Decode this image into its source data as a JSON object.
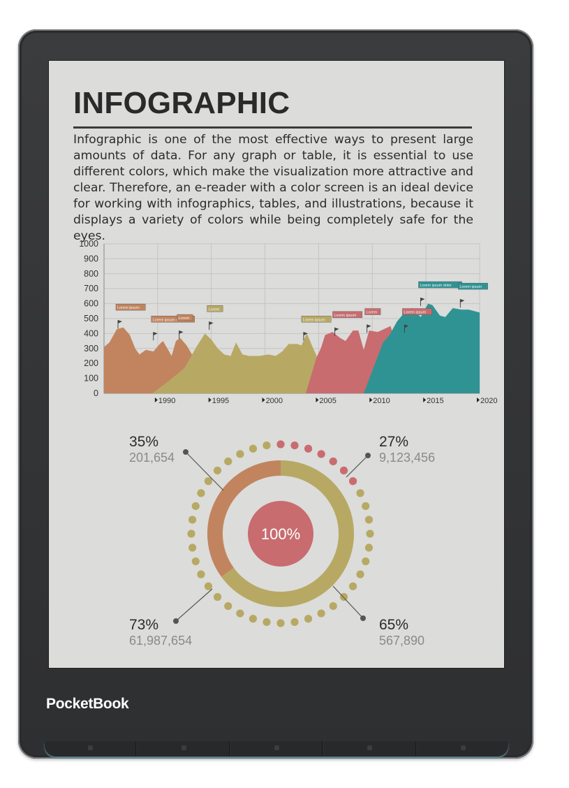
{
  "device": {
    "brand_logo": "PocketBook"
  },
  "page": {
    "title": "INFOGRAPHIC",
    "body": "Infographic is one of the most effective ways to present large amounts of data. For any graph or table, it is essential to use different colors, which make the visualization more attractive and clear. Therefore, an e-reader with a color screen is an ideal device for working with infographics, tables, and illustrations, because it displays a variety of colors while being completely safe for the eyes."
  },
  "colors": {
    "orange": "#c1845f",
    "olive": "#b7a964",
    "red": "#c86c6f",
    "teal": "#2f9394",
    "screen_bg": "#dcdcda",
    "text": "#2c2c2c"
  },
  "chart_data": [
    {
      "type": "area",
      "x_labels": [
        "1990",
        "1995",
        "2000",
        "2005",
        "2010",
        "2015",
        "2020"
      ],
      "xlim": [
        1985,
        2020
      ],
      "ylim": [
        0,
        1000
      ],
      "y_ticks": [
        "1000",
        "900",
        "800",
        "700",
        "600",
        "500",
        "400",
        "300",
        "200",
        "100",
        "0"
      ],
      "grid": true,
      "series": [
        {
          "color": "#c1845f",
          "points": [
            [
              1985,
              310
            ],
            [
              1985.5,
              340
            ],
            [
              1986.2,
              430
            ],
            [
              1986.8,
              440
            ],
            [
              1987.4,
              390
            ],
            [
              1987.9,
              300
            ],
            [
              1988.3,
              260
            ],
            [
              1988.9,
              290
            ],
            [
              1989.6,
              280
            ],
            [
              1990.2,
              330
            ],
            [
              1990.5,
              350
            ],
            [
              1990.9,
              300
            ],
            [
              1991.3,
              250
            ],
            [
              1991.7,
              350
            ],
            [
              1992.1,
              370
            ],
            [
              1992.7,
              320
            ],
            [
              1993.2,
              260
            ],
            [
              1993.6,
              220
            ],
            [
              1993.9,
              0
            ]
          ]
        },
        {
          "color": "#b7a964",
          "points": [
            [
              1989.5,
              0
            ],
            [
              1991.0,
              80
            ],
            [
              1992.5,
              170
            ],
            [
              1993.6,
              310
            ],
            [
              1994.4,
              400
            ],
            [
              1995.0,
              360
            ],
            [
              1995.6,
              300
            ],
            [
              1996.2,
              260
            ],
            [
              1996.8,
              250
            ],
            [
              1997.3,
              340
            ],
            [
              1997.9,
              260
            ],
            [
              1998.5,
              250
            ],
            [
              1999.5,
              250
            ],
            [
              2000.3,
              260
            ],
            [
              2001.0,
              250
            ],
            [
              2001.6,
              280
            ],
            [
              2002.2,
              330
            ],
            [
              2003.0,
              330
            ],
            [
              2003.4,
              320
            ],
            [
              2003.9,
              400
            ],
            [
              2004.5,
              300
            ],
            [
              2005.0,
              220
            ],
            [
              2005.5,
              0
            ]
          ]
        },
        {
          "color": "#c86c6f",
          "points": [
            [
              2003.8,
              0
            ],
            [
              2004.3,
              120
            ],
            [
              2004.8,
              240
            ],
            [
              2005.2,
              300
            ],
            [
              2005.6,
              390
            ],
            [
              2006.3,
              410
            ],
            [
              2007.0,
              370
            ],
            [
              2007.5,
              350
            ],
            [
              2008.2,
              420
            ],
            [
              2008.7,
              420
            ],
            [
              2009.2,
              290
            ],
            [
              2009.7,
              420
            ],
            [
              2010.5,
              410
            ],
            [
              2011.1,
              430
            ],
            [
              2011.7,
              450
            ],
            [
              2012.2,
              330
            ],
            [
              2012.5,
              0
            ]
          ]
        },
        {
          "color": "#2f9394",
          "points": [
            [
              2009.2,
              0
            ],
            [
              2010.1,
              170
            ],
            [
              2011.0,
              340
            ],
            [
              2011.6,
              390
            ],
            [
              2012.3,
              480
            ],
            [
              2013.0,
              540
            ],
            [
              2013.7,
              570
            ],
            [
              2014.5,
              510
            ],
            [
              2015.2,
              600
            ],
            [
              2015.6,
              590
            ],
            [
              2016.3,
              520
            ],
            [
              2016.8,
              510
            ],
            [
              2017.5,
              570
            ],
            [
              2018.3,
              560
            ],
            [
              2019.0,
              560
            ],
            [
              2020,
              540
            ],
            [
              2020,
              0
            ]
          ]
        }
      ],
      "flags": [
        {
          "x": 1986.3,
          "y": 490,
          "color": "#c1845f",
          "label": "Lorem ipsum"
        },
        {
          "x": 1989.6,
          "y": 410,
          "color": "#c1845f",
          "label": "Lorem ipsum dolor"
        },
        {
          "x": 1992.0,
          "y": 420,
          "color": "#c1845f",
          "label": "Lorem"
        },
        {
          "x": 1994.8,
          "y": 480,
          "color": "#b7a964",
          "label": "Lorem"
        },
        {
          "x": 2003.6,
          "y": 410,
          "color": "#b7a964",
          "label": "Lorem ipsum"
        },
        {
          "x": 2006.5,
          "y": 440,
          "color": "#c86c6f",
          "label": "Lorem ipsum"
        },
        {
          "x": 2009.5,
          "y": 460,
          "color": "#c86c6f",
          "label": "Lorem"
        },
        {
          "x": 2013.0,
          "y": 460,
          "color": "#c86c6f",
          "label": "Lorem ipsum"
        },
        {
          "x": 2014.5,
          "y": 640,
          "color": "#2f9394",
          "label": "Lorem ipsum dolor"
        },
        {
          "x": 2018.2,
          "y": 630,
          "color": "#2f9394",
          "label": "Lorem ipsum"
        }
      ]
    },
    {
      "type": "pie",
      "center_label": "100%",
      "callouts": [
        {
          "position": "top-left",
          "percent": "35%",
          "value": "201,654",
          "color": "#c1845f"
        },
        {
          "position": "top-right",
          "percent": "27%",
          "value": "9,123,456",
          "color": "#c86c6f"
        },
        {
          "position": "bottom-left",
          "percent": "73%",
          "value": "61,987,654",
          "color": "#b7a964"
        },
        {
          "position": "bottom-right",
          "percent": "65%",
          "value": "567,890",
          "color": "#b7a964"
        }
      ],
      "ring_segments": [
        {
          "color": "#b7a964",
          "share": 0.65
        },
        {
          "color": "#c1845f",
          "share": 0.35
        }
      ],
      "dot_ring": {
        "total": 40,
        "red_from": 0,
        "red_count": 7,
        "red_color": "#c86c6f",
        "other_color": "#b7a964"
      }
    }
  ],
  "hardware_buttons": [
    "home",
    "back",
    "forward",
    "menu",
    "power"
  ]
}
